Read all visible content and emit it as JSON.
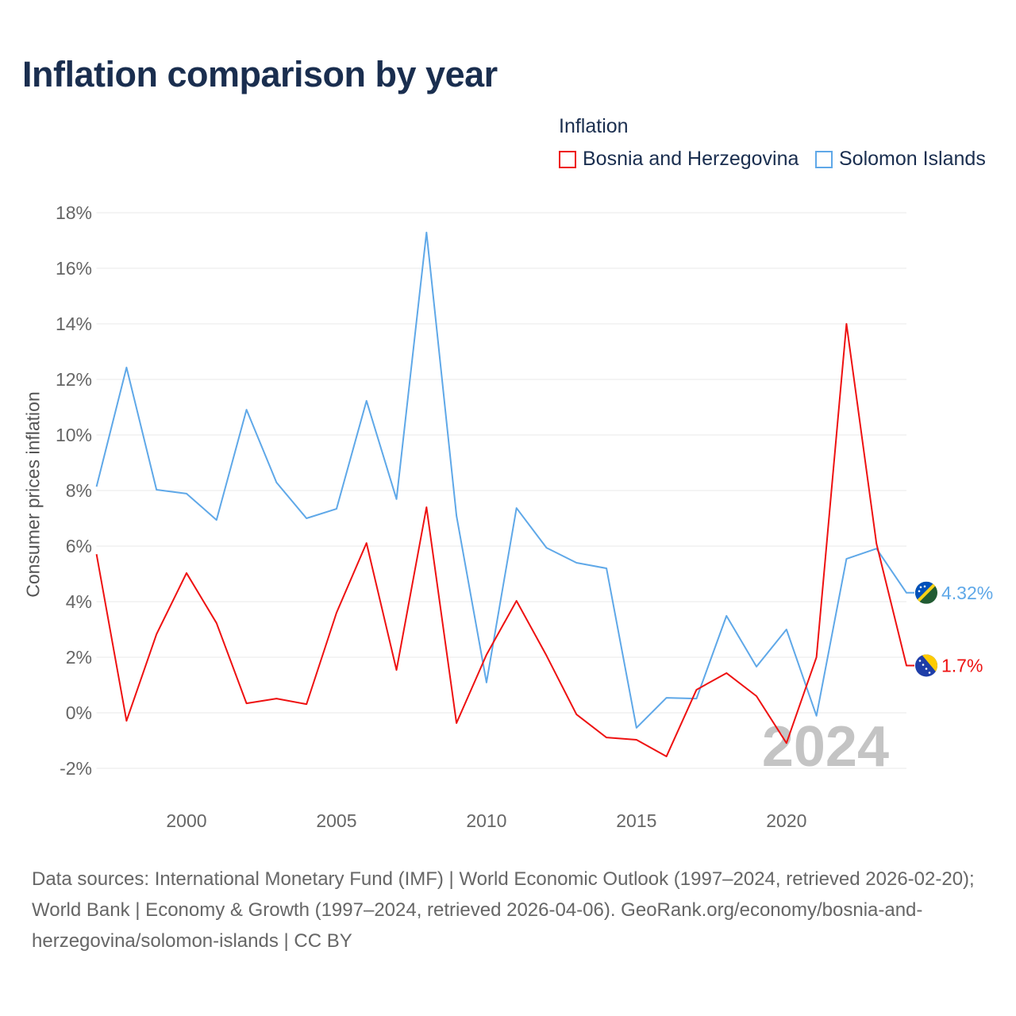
{
  "chart_data": {
    "type": "line",
    "title": "Inflation comparison by year",
    "legend_title": "Inflation",
    "legend_position": "top-right",
    "ylabel": "Consumer prices inflation",
    "xlabel": "",
    "ylim": [
      -2,
      18
    ],
    "xlim": [
      1997,
      2024
    ],
    "yticks": [
      -2,
      0,
      2,
      4,
      6,
      8,
      10,
      12,
      14,
      16,
      18
    ],
    "ytick_labels": [
      "-2%",
      "0%",
      "2%",
      "4%",
      "6%",
      "8%",
      "10%",
      "12%",
      "14%",
      "16%",
      "18%"
    ],
    "xticks": [
      2000,
      2005,
      2010,
      2015,
      2020
    ],
    "xtick_labels": [
      "2000",
      "2005",
      "2010",
      "2015",
      "2020"
    ],
    "grid": true,
    "year_watermark": "2024",
    "x": [
      1997,
      1998,
      1999,
      2000,
      2001,
      2002,
      2003,
      2004,
      2005,
      2006,
      2007,
      2008,
      2009,
      2010,
      2011,
      2012,
      2013,
      2014,
      2015,
      2016,
      2017,
      2018,
      2019,
      2020,
      2021,
      2022,
      2023,
      2024
    ],
    "series": [
      {
        "name": "Bosnia and Herzegovina",
        "color": "#ee1111",
        "end_label": "1.7%",
        "values": [
          5.71,
          -0.29,
          2.83,
          5.03,
          3.23,
          0.34,
          0.51,
          0.31,
          3.6,
          6.11,
          1.54,
          7.4,
          -0.37,
          2.09,
          4.03,
          2.06,
          -0.06,
          -0.89,
          -0.97,
          -1.57,
          0.83,
          1.43,
          0.6,
          -1.09,
          2.0,
          14.0,
          6.09,
          1.7
        ]
      },
      {
        "name": "Solomon Islands",
        "color": "#5fa8e8",
        "end_label": "4.32%",
        "values": [
          8.14,
          12.43,
          8.03,
          7.89,
          6.94,
          10.91,
          8.29,
          7.0,
          7.34,
          11.23,
          7.69,
          17.29,
          7.09,
          1.09,
          7.37,
          5.94,
          5.4,
          5.2,
          -0.54,
          0.54,
          0.51,
          3.49,
          1.66,
          3.0,
          -0.11,
          5.54,
          5.91,
          4.32
        ]
      }
    ]
  },
  "source_text": "Data sources: International Monetary Fund (IMF) | World Economic Outlook (1997–2024, retrieved 2026-02-20); World Bank | Economy & Growth (1997–2024, retrieved 2026-04-06). GeoRank.org/economy/bosnia-and-herzegovina/solomon-islands | CC BY"
}
